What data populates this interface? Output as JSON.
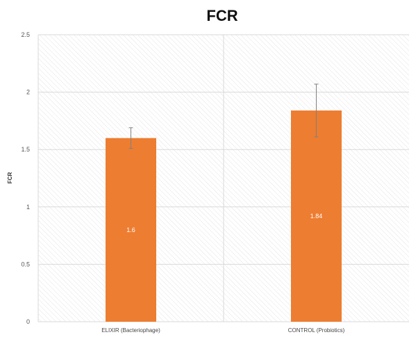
{
  "chart_data": {
    "type": "bar",
    "title": "FCR",
    "xlabel": "",
    "ylabel": "FCR",
    "categories": [
      "ELIXIR (Bacteriophage)",
      "CONTROL (Probiotics)"
    ],
    "values": [
      1.6,
      1.84
    ],
    "data_labels": [
      "1.6",
      "1.84"
    ],
    "error": [
      0.09,
      0.23
    ],
    "ylim": [
      0,
      2.5
    ],
    "yticks": [
      0,
      0.5,
      1,
      1.5,
      2,
      2.5
    ],
    "ytick_labels": [
      "0",
      "0.5",
      "1",
      "1.5",
      "2",
      "2.5"
    ],
    "grid": true,
    "legend": "none",
    "colors": {
      "bar": "#ed7d31",
      "grid": "#d9d9d9",
      "hatch": "#e3e3e3",
      "error_bar": "#808080"
    }
  }
}
